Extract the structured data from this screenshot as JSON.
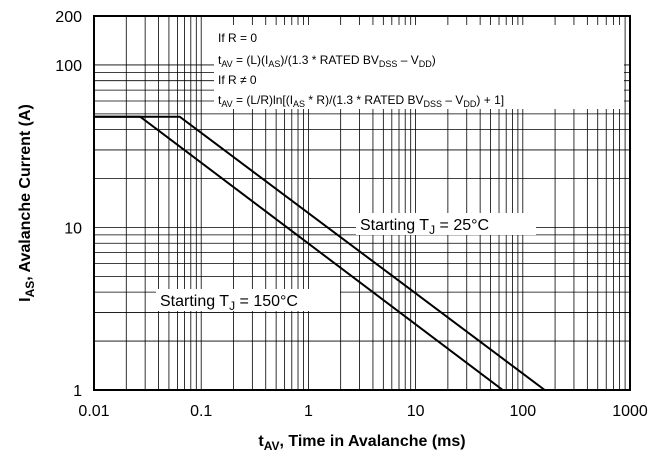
{
  "chart_data": {
    "type": "line",
    "title": "",
    "xlabel_main": "t",
    "xlabel_sub": "AV",
    "xlabel_rest": ", Time in Avalanche (ms)",
    "ylabel_main": "I",
    "ylabel_sub": "AS",
    "ylabel_rest": ", Avalanche Current (A)",
    "x_scale": "log",
    "y_scale": "log",
    "xlim": [
      0.01,
      1000
    ],
    "ylim": [
      1,
      200
    ],
    "grid": true,
    "x_ticks": [
      {
        "value": 0.01,
        "label": "0.01"
      },
      {
        "value": 0.1,
        "label": "0.1"
      },
      {
        "value": 1,
        "label": "1"
      },
      {
        "value": 10,
        "label": "10"
      },
      {
        "value": 100,
        "label": "100"
      },
      {
        "value": 1000,
        "label": "1000"
      }
    ],
    "y_ticks": [
      {
        "value": 1,
        "label": "1"
      },
      {
        "value": 10,
        "label": "10"
      },
      {
        "value": 100,
        "label": "100"
      },
      {
        "value": 200,
        "label": "200"
      }
    ],
    "series": [
      {
        "name_main": "Starting T",
        "name_sub": "J",
        "name_rest": " = 25°C",
        "x": [
          0.01,
          0.063,
          160
        ],
        "y": [
          48,
          48,
          1
        ]
      },
      {
        "name_main": "Starting T",
        "name_sub": "J",
        "name_rest": " = 150°C",
        "x": [
          0.01,
          0.027,
          65
        ],
        "y": [
          48,
          48,
          1
        ]
      }
    ],
    "annotations": [
      {
        "parts": [
          {
            "t": "If R = 0"
          }
        ]
      },
      {
        "parts": [
          {
            "t": "t"
          },
          {
            "t": "AV",
            "sub": true
          },
          {
            "t": " = (L)(I"
          },
          {
            "t": "AS",
            "sub": true
          },
          {
            "t": ")/(1.3 * RATED BV"
          },
          {
            "t": "DSS",
            "sub": true
          },
          {
            "t": " – V"
          },
          {
            "t": "DD",
            "sub": true
          },
          {
            "t": ")"
          }
        ]
      },
      {
        "parts": [
          {
            "t": "If R ≠ 0"
          }
        ]
      },
      {
        "parts": [
          {
            "t": "t"
          },
          {
            "t": "AV",
            "sub": true
          },
          {
            "t": " = (L/R)ln[(I"
          },
          {
            "t": "AS",
            "sub": true
          },
          {
            "t": " * R)/(1.3 * RATED BV"
          },
          {
            "t": "DSS",
            "sub": true
          },
          {
            "t": " – V"
          },
          {
            "t": "DD",
            "sub": true
          },
          {
            "t": ") + 1]"
          }
        ]
      }
    ]
  }
}
